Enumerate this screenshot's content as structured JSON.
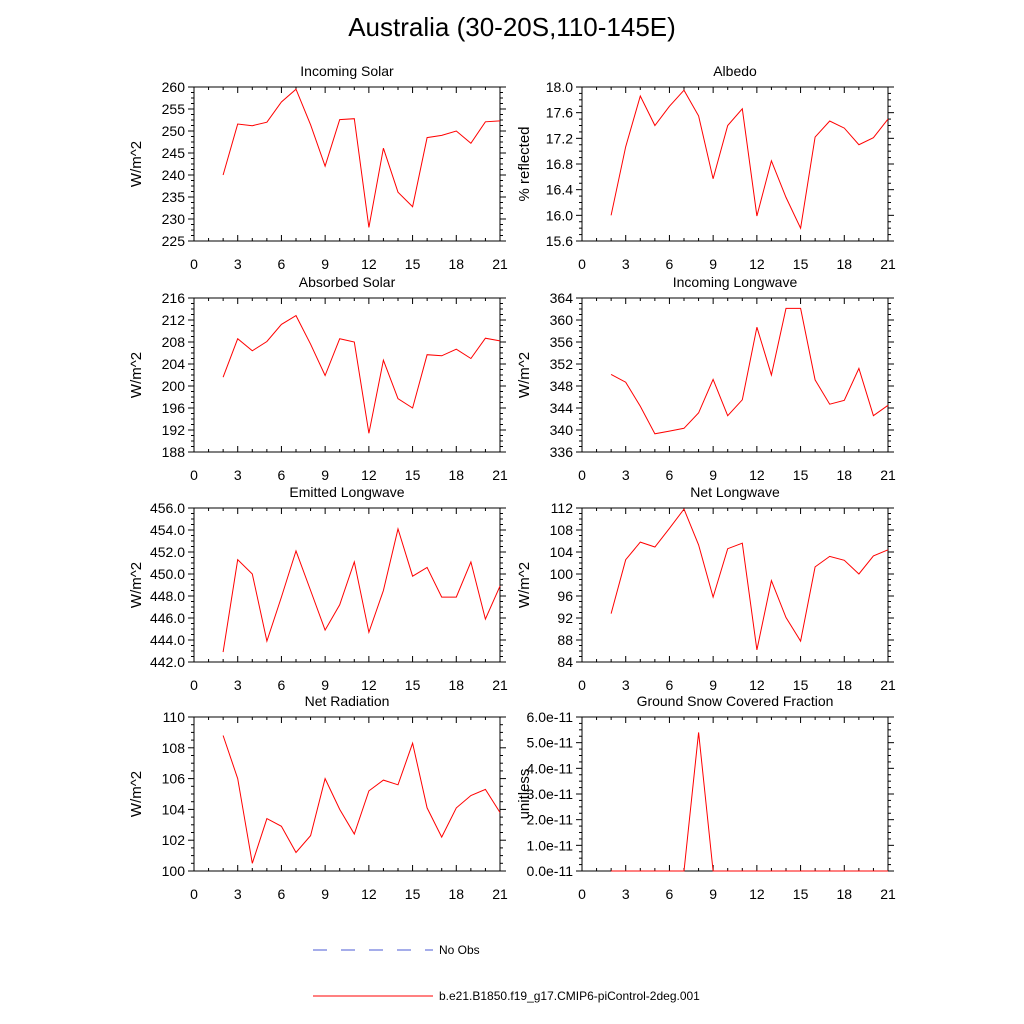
{
  "figure_title": "Australia (30-20S,110-145E)",
  "colors": {
    "model_line": "#ff0000",
    "obs_line": "#4b5bd6",
    "axis": "#000000"
  },
  "legend": [
    {
      "label": "No Obs",
      "style": "dashed",
      "color": "#4b5bd6"
    },
    {
      "label": "b.e21.B1850.f19_g17.CMIP6-piControl-2deg.001",
      "style": "solid",
      "color": "#ff0000"
    }
  ],
  "chart_data": [
    {
      "type": "line",
      "title": "Incoming Solar",
      "ylabel": "W/m^2",
      "xlim": [
        0,
        21
      ],
      "xticks": [
        0,
        3,
        6,
        9,
        12,
        15,
        18,
        21
      ],
      "xtick_labels": [
        "0",
        "3",
        "6",
        "9",
        "12",
        "15",
        "18",
        "21"
      ],
      "ylim": [
        225,
        260
      ],
      "yticks": [
        225,
        230,
        235,
        240,
        245,
        250,
        255,
        260
      ],
      "ytick_labels": [
        "225",
        "230",
        "235",
        "240",
        "245",
        "250",
        "255",
        "260"
      ],
      "series": [
        {
          "x": [
            2,
            3,
            4,
            5,
            6,
            7,
            8,
            9,
            10,
            11,
            12,
            13,
            14,
            15,
            16,
            17,
            18,
            19,
            20,
            21
          ],
          "values": [
            240,
            251.6,
            251.2,
            252,
            256.6,
            259.5,
            251.4,
            242,
            252.6,
            252.8,
            228.1,
            246.1,
            236.1,
            232.8,
            248.5,
            249,
            250,
            247.2,
            252.1,
            252.3
          ]
        }
      ]
    },
    {
      "type": "line",
      "title": "Albedo",
      "ylabel": "% reflected",
      "xlim": [
        0,
        21
      ],
      "xticks": [
        0,
        3,
        6,
        9,
        12,
        15,
        18,
        21
      ],
      "xtick_labels": [
        "0",
        "3",
        "6",
        "9",
        "12",
        "15",
        "18",
        "21"
      ],
      "ylim": [
        15.6,
        18.0
      ],
      "yticks": [
        15.6,
        16.0,
        16.4,
        16.8,
        17.2,
        17.6,
        18.0
      ],
      "ytick_labels": [
        "15.6",
        "16.0",
        "16.4",
        "16.8",
        "17.2",
        "17.6",
        "18.0"
      ],
      "series": [
        {
          "x": [
            2,
            3,
            4,
            5,
            6,
            7,
            8,
            9,
            10,
            11,
            12,
            13,
            14,
            15,
            16,
            17,
            18,
            19,
            20,
            21
          ],
          "values": [
            16.0,
            17.07,
            17.86,
            17.4,
            17.7,
            17.95,
            17.55,
            16.57,
            17.4,
            17.66,
            15.99,
            16.85,
            16.28,
            15.8,
            17.22,
            17.47,
            17.36,
            17.1,
            17.21,
            17.5
          ]
        }
      ]
    },
    {
      "type": "line",
      "title": "Absorbed Solar",
      "ylabel": "W/m^2",
      "xlim": [
        0,
        21
      ],
      "xticks": [
        0,
        3,
        6,
        9,
        12,
        15,
        18,
        21
      ],
      "xtick_labels": [
        "0",
        "3",
        "6",
        "9",
        "12",
        "15",
        "18",
        "21"
      ],
      "ylim": [
        188,
        216
      ],
      "yticks": [
        188,
        192,
        196,
        200,
        204,
        208,
        212,
        216
      ],
      "ytick_labels": [
        "188",
        "192",
        "196",
        "200",
        "204",
        "208",
        "212",
        "216"
      ],
      "series": [
        {
          "x": [
            2,
            3,
            4,
            5,
            6,
            7,
            8,
            9,
            10,
            11,
            12,
            13,
            14,
            15,
            16,
            17,
            18,
            19,
            20,
            21
          ],
          "values": [
            201.6,
            208.6,
            206.4,
            208.1,
            211.2,
            212.8,
            207.6,
            201.9,
            208.6,
            208,
            191.4,
            204.7,
            197.7,
            196,
            205.7,
            205.5,
            206.7,
            205,
            208.7,
            208.2
          ]
        }
      ]
    },
    {
      "type": "line",
      "title": "Incoming Longwave",
      "ylabel": "W/m^2",
      "xlim": [
        0,
        21
      ],
      "xticks": [
        0,
        3,
        6,
        9,
        12,
        15,
        18,
        21
      ],
      "xtick_labels": [
        "0",
        "3",
        "6",
        "9",
        "12",
        "15",
        "18",
        "21"
      ],
      "ylim": [
        336,
        364
      ],
      "yticks": [
        336,
        340,
        344,
        348,
        352,
        356,
        360,
        364
      ],
      "ytick_labels": [
        "336",
        "340",
        "344",
        "348",
        "352",
        "356",
        "360",
        "364"
      ],
      "series": [
        {
          "x": [
            2,
            3,
            4,
            5,
            6,
            7,
            8,
            9,
            10,
            11,
            12,
            13,
            14,
            15,
            16,
            17,
            18,
            19,
            20,
            21
          ],
          "values": [
            350.1,
            348.7,
            344.3,
            339.3,
            339.8,
            340.3,
            343.1,
            349.2,
            342.6,
            345.5,
            358.7,
            350,
            362.1,
            362.1,
            349.1,
            344.7,
            345.4,
            351.2,
            342.6,
            344.5
          ]
        }
      ]
    },
    {
      "type": "line",
      "title": "Emitted Longwave",
      "ylabel": "W/m^2",
      "xlim": [
        0,
        21
      ],
      "xticks": [
        0,
        3,
        6,
        9,
        12,
        15,
        18,
        21
      ],
      "xtick_labels": [
        "0",
        "3",
        "6",
        "9",
        "12",
        "15",
        "18",
        "21"
      ],
      "ylim": [
        442,
        456
      ],
      "yticks": [
        442,
        444,
        446,
        448,
        450,
        452,
        454,
        456
      ],
      "ytick_labels": [
        "442.0",
        "444.0",
        "446.0",
        "448.0",
        "450.0",
        "452.0",
        "454.0",
        "456.0"
      ],
      "series": [
        {
          "x": [
            2,
            3,
            4,
            5,
            6,
            7,
            8,
            9,
            10,
            11,
            12,
            13,
            14,
            15,
            16,
            17,
            18,
            19,
            20,
            21
          ],
          "values": [
            442.9,
            451.3,
            450,
            443.9,
            447.9,
            452.1,
            448.5,
            444.9,
            447.2,
            451.1,
            444.7,
            448.5,
            454.1,
            449.8,
            450.6,
            447.9,
            447.9,
            451.1,
            445.9,
            448.9
          ]
        }
      ]
    },
    {
      "type": "line",
      "title": "Net Longwave",
      "ylabel": "W/m^2",
      "xlim": [
        0,
        21
      ],
      "xticks": [
        0,
        3,
        6,
        9,
        12,
        15,
        18,
        21
      ],
      "xtick_labels": [
        "0",
        "3",
        "6",
        "9",
        "12",
        "15",
        "18",
        "21"
      ],
      "ylim": [
        84,
        112
      ],
      "yticks": [
        84,
        88,
        92,
        96,
        100,
        104,
        108,
        112
      ],
      "ytick_labels": [
        "84",
        "88",
        "92",
        "96",
        "100",
        "104",
        "108",
        "112"
      ],
      "series": [
        {
          "x": [
            2,
            3,
            4,
            5,
            6,
            7,
            8,
            9,
            10,
            11,
            12,
            13,
            14,
            15,
            16,
            17,
            18,
            19,
            20,
            21
          ],
          "values": [
            92.8,
            102.6,
            105.8,
            104.9,
            108.3,
            111.8,
            105.3,
            95.8,
            104.6,
            105.6,
            86.2,
            98.8,
            92.1,
            87.8,
            101.3,
            103.2,
            102.5,
            100,
            103.3,
            104.4
          ]
        }
      ]
    },
    {
      "type": "line",
      "title": "Net Radiation",
      "ylabel": "W/m^2",
      "xlim": [
        0,
        21
      ],
      "xticks": [
        0,
        3,
        6,
        9,
        12,
        15,
        18,
        21
      ],
      "xtick_labels": [
        "0",
        "3",
        "6",
        "9",
        "12",
        "15",
        "18",
        "21"
      ],
      "ylim": [
        100,
        110
      ],
      "yticks": [
        100,
        102,
        104,
        106,
        108,
        110
      ],
      "ytick_labels": [
        "100",
        "102",
        "104",
        "106",
        "108",
        "110"
      ],
      "series": [
        {
          "x": [
            2,
            3,
            4,
            5,
            6,
            7,
            8,
            9,
            10,
            11,
            12,
            13,
            14,
            15,
            16,
            17,
            18,
            19,
            20,
            21
          ],
          "values": [
            108.8,
            106,
            100.5,
            103.4,
            102.9,
            101.2,
            102.3,
            106,
            104,
            102.4,
            105.2,
            105.9,
            105.6,
            108.3,
            104.1,
            102.2,
            104.1,
            104.9,
            105.3,
            103.8
          ]
        }
      ]
    },
    {
      "type": "line",
      "title": "Ground Snow Covered Fraction",
      "ylabel": "unitless",
      "xlim": [
        0,
        21
      ],
      "xticks": [
        0,
        3,
        6,
        9,
        12,
        15,
        18,
        21
      ],
      "xtick_labels": [
        "0",
        "3",
        "6",
        "9",
        "12",
        "15",
        "18",
        "21"
      ],
      "ylim": [
        0,
        6e-11
      ],
      "yticks": [
        0,
        1e-11,
        2e-11,
        3e-11,
        4e-11,
        5e-11,
        6e-11
      ],
      "ytick_labels": [
        "0.0e-11",
        "1.0e-11",
        "2.0e-11",
        "3.0e-11",
        "4.0e-11",
        "5.0e-11",
        "6.0e-11"
      ],
      "series": [
        {
          "x": [
            2,
            3,
            4,
            5,
            6,
            7,
            8,
            9,
            10,
            11,
            12,
            13,
            14,
            15,
            16,
            17,
            18,
            19,
            20,
            21
          ],
          "values": [
            0,
            0,
            0,
            0,
            0,
            0,
            5.4e-11,
            0,
            0,
            0,
            0,
            0,
            0,
            0,
            0,
            0,
            0,
            0,
            0,
            0
          ]
        }
      ]
    }
  ]
}
